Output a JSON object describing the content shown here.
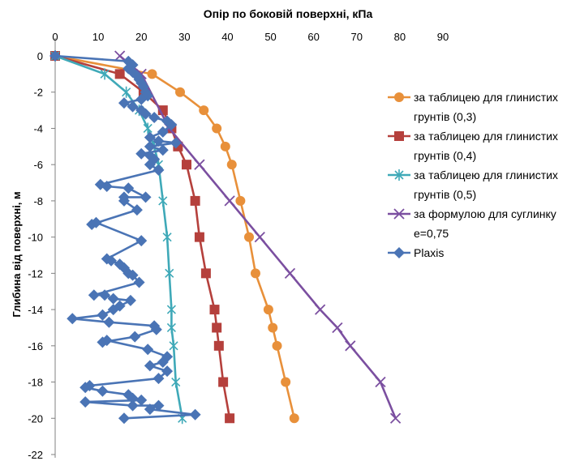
{
  "chart_data": {
    "type": "line",
    "title": "Опір по боковій поверхні, кПа",
    "xlabel": "",
    "ylabel": "Глибина від поверхні, м",
    "xlim": [
      0,
      90
    ],
    "ylim": [
      -22,
      0
    ],
    "x_ticks": [
      "0",
      "10",
      "20",
      "30",
      "40",
      "50",
      "60",
      "70",
      "80",
      "90"
    ],
    "y_ticks": [
      "0",
      "-2",
      "-4",
      "-6",
      "-8",
      "-10",
      "-12",
      "-14",
      "-16",
      "-18",
      "-20",
      "-22"
    ],
    "legend_position": "right",
    "series": [
      {
        "name": "за таблицею для глинистих грунтів (0,3)",
        "color": "#E8903A",
        "marker": "circle",
        "points": [
          [
            0,
            0
          ],
          [
            22.5,
            -1
          ],
          [
            29,
            -2
          ],
          [
            34.5,
            -3
          ],
          [
            37.5,
            -4
          ],
          [
            39.5,
            -5
          ],
          [
            41,
            -6
          ],
          [
            43,
            -8
          ],
          [
            45,
            -10
          ],
          [
            46.5,
            -12
          ],
          [
            49.5,
            -14
          ],
          [
            50.5,
            -15
          ],
          [
            51.5,
            -16
          ],
          [
            53.5,
            -18
          ],
          [
            55.5,
            -20
          ]
        ]
      },
      {
        "name": "за таблицею для глинистих грунтів (0,4)",
        "color": "#B5403C",
        "marker": "square",
        "points": [
          [
            0,
            0
          ],
          [
            15,
            -1
          ],
          [
            20.5,
            -2
          ],
          [
            25,
            -3
          ],
          [
            27,
            -4
          ],
          [
            28.5,
            -5
          ],
          [
            30.5,
            -6
          ],
          [
            32.5,
            -8
          ],
          [
            33.5,
            -10
          ],
          [
            35,
            -12
          ],
          [
            37,
            -14
          ],
          [
            37.5,
            -15
          ],
          [
            38,
            -16
          ],
          [
            39,
            -18
          ],
          [
            40.5,
            -20
          ]
        ]
      },
      {
        "name": "за таблицею для глинистих грунтів (0,5)",
        "color": "#3FA9B8",
        "marker": "star",
        "points": [
          [
            0,
            0
          ],
          [
            11.5,
            -1
          ],
          [
            16.5,
            -2
          ],
          [
            19.5,
            -3
          ],
          [
            21.5,
            -4
          ],
          [
            23,
            -5
          ],
          [
            24,
            -6
          ],
          [
            25,
            -8
          ],
          [
            26,
            -10
          ],
          [
            26.5,
            -12
          ],
          [
            27,
            -14
          ],
          [
            27,
            -15
          ],
          [
            27.5,
            -16
          ],
          [
            28,
            -18
          ],
          [
            29.5,
            -20
          ]
        ]
      },
      {
        "name": "за формулою для суглинку е=0,75",
        "color": "#7B4FA0",
        "marker": "x",
        "points": [
          [
            15,
            0
          ],
          [
            20,
            -1
          ],
          [
            26.5,
            -4
          ],
          [
            33.5,
            -6
          ],
          [
            40.5,
            -8
          ],
          [
            47.5,
            -10
          ],
          [
            54.5,
            -12
          ],
          [
            61.5,
            -14
          ],
          [
            65.5,
            -15
          ],
          [
            68.5,
            -16
          ],
          [
            75.5,
            -18
          ],
          [
            79,
            -20
          ]
        ]
      },
      {
        "name": "Plaxis",
        "color": "#4A74B5",
        "marker": "diamond",
        "points": [
          [
            0,
            0
          ],
          [
            17,
            -0.3
          ],
          [
            18,
            -0.5
          ],
          [
            17,
            -0.7
          ],
          [
            18,
            -0.9
          ],
          [
            19,
            -1.1
          ],
          [
            19.5,
            -1.3
          ],
          [
            20,
            -1.5
          ],
          [
            20.5,
            -1.7
          ],
          [
            21,
            -2
          ],
          [
            21.5,
            -2.2
          ],
          [
            20,
            -2.4
          ],
          [
            16,
            -2.6
          ],
          [
            18,
            -2.8
          ],
          [
            20,
            -3
          ],
          [
            21,
            -3.2
          ],
          [
            23,
            -3.4
          ],
          [
            26,
            -3.6
          ],
          [
            27,
            -3.8
          ],
          [
            25,
            -4.2
          ],
          [
            22,
            -4.5
          ],
          [
            24,
            -4.7
          ],
          [
            28,
            -4.8
          ],
          [
            22,
            -5
          ],
          [
            25,
            -5.2
          ],
          [
            20,
            -5.4
          ],
          [
            22,
            -5.5
          ],
          [
            23,
            -5.7
          ],
          [
            22,
            -6
          ],
          [
            24,
            -6.3
          ],
          [
            10.5,
            -7.1
          ],
          [
            12,
            -7.2
          ],
          [
            17,
            -7.3
          ],
          [
            21,
            -7.8
          ],
          [
            16,
            -7.8
          ],
          [
            16,
            -8
          ],
          [
            19,
            -8.5
          ],
          [
            8.5,
            -9.3
          ],
          [
            9.5,
            -9.2
          ],
          [
            20,
            -10.2
          ],
          [
            12,
            -11.2
          ],
          [
            13,
            -11.3
          ],
          [
            15,
            -11.5
          ],
          [
            16,
            -11.7
          ],
          [
            17,
            -12
          ],
          [
            18,
            -12.1
          ],
          [
            19.5,
            -12.5
          ],
          [
            9,
            -13.2
          ],
          [
            11.5,
            -13.2
          ],
          [
            13.5,
            -13.4
          ],
          [
            17.5,
            -13.5
          ],
          [
            15,
            -13.8
          ],
          [
            13.5,
            -14
          ],
          [
            11,
            -14.3
          ],
          [
            4,
            -14.5
          ],
          [
            12.5,
            -14.7
          ],
          [
            23,
            -14.9
          ],
          [
            23.5,
            -15.1
          ],
          [
            18.5,
            -15.5
          ],
          [
            11,
            -15.8
          ],
          [
            12,
            -15.7
          ],
          [
            21.5,
            -16.2
          ],
          [
            26,
            -16.6
          ],
          [
            25,
            -16.9
          ],
          [
            22,
            -17.1
          ],
          [
            26,
            -17.4
          ],
          [
            24,
            -17.8
          ],
          [
            8,
            -18.2
          ],
          [
            7,
            -18.3
          ],
          [
            11,
            -18.5
          ],
          [
            17,
            -18.7
          ],
          [
            18,
            -18.9
          ],
          [
            20,
            -19
          ],
          [
            7,
            -19.1
          ],
          [
            18,
            -19.3
          ],
          [
            24,
            -19.3
          ],
          [
            22,
            -19.5
          ],
          [
            32.5,
            -19.8
          ],
          [
            16,
            -20
          ]
        ]
      }
    ]
  }
}
